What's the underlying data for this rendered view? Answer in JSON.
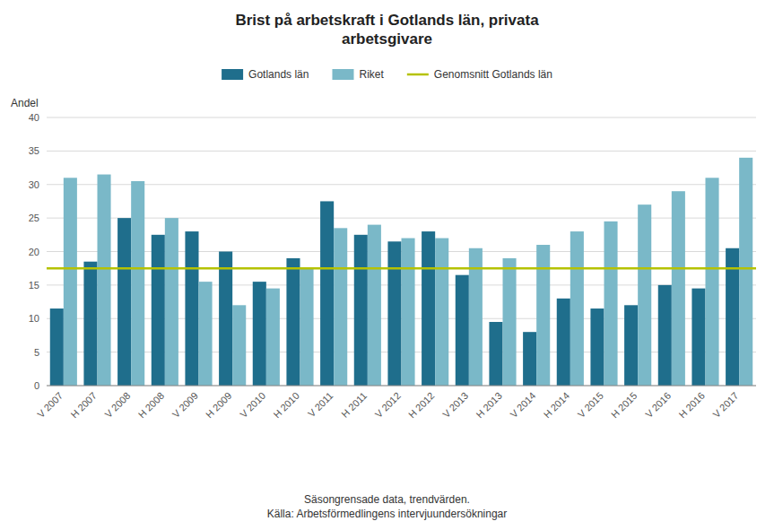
{
  "chart_data": {
    "type": "bar",
    "title": "Brist på arbetskraft i Gotlands län, privata\narbetsgivare",
    "ylabel": "Andel",
    "annotations": [
      "Säsongrensade data, trendvärden.",
      "Källa: Arbetsförmedlingens intervjuundersökningar"
    ],
    "categories": [
      "V 2007",
      "H 2007",
      "V 2008",
      "H 2008",
      "V 2009",
      "H 2009",
      "V 2010",
      "H 2010",
      "V 2011",
      "H 2011",
      "V 2012",
      "H 2012",
      "V 2013",
      "H 2013",
      "V 2014",
      "H 2014",
      "V 2015",
      "H 2015",
      "V 2016",
      "H 2016",
      "V 2017"
    ],
    "series": [
      {
        "name": "Gotlands län",
        "color": "#1f6e8c",
        "values": [
          11.5,
          18.5,
          25.0,
          22.5,
          23.0,
          20.0,
          15.5,
          19.0,
          27.5,
          22.5,
          21.5,
          23.0,
          16.5,
          9.5,
          8.0,
          13.0,
          11.5,
          12.0,
          15.0,
          14.5,
          20.5
        ]
      },
      {
        "name": "Riket",
        "color": "#7ab8c8",
        "values": [
          31.0,
          31.5,
          30.5,
          25.0,
          15.5,
          12.0,
          14.5,
          17.5,
          23.5,
          24.0,
          22.0,
          22.0,
          20.5,
          19.0,
          21.0,
          23.0,
          24.5,
          27.0,
          29.0,
          31.0,
          34.0
        ]
      },
      {
        "name": "Genomsnitt Gotlands län",
        "type": "hline",
        "color": "#b5c200",
        "value": 17.5
      }
    ],
    "ylim": [
      0,
      40
    ],
    "yticks": [
      0,
      5,
      10,
      15,
      20,
      25,
      30,
      35,
      40
    ],
    "grid": true,
    "legend": "top"
  }
}
